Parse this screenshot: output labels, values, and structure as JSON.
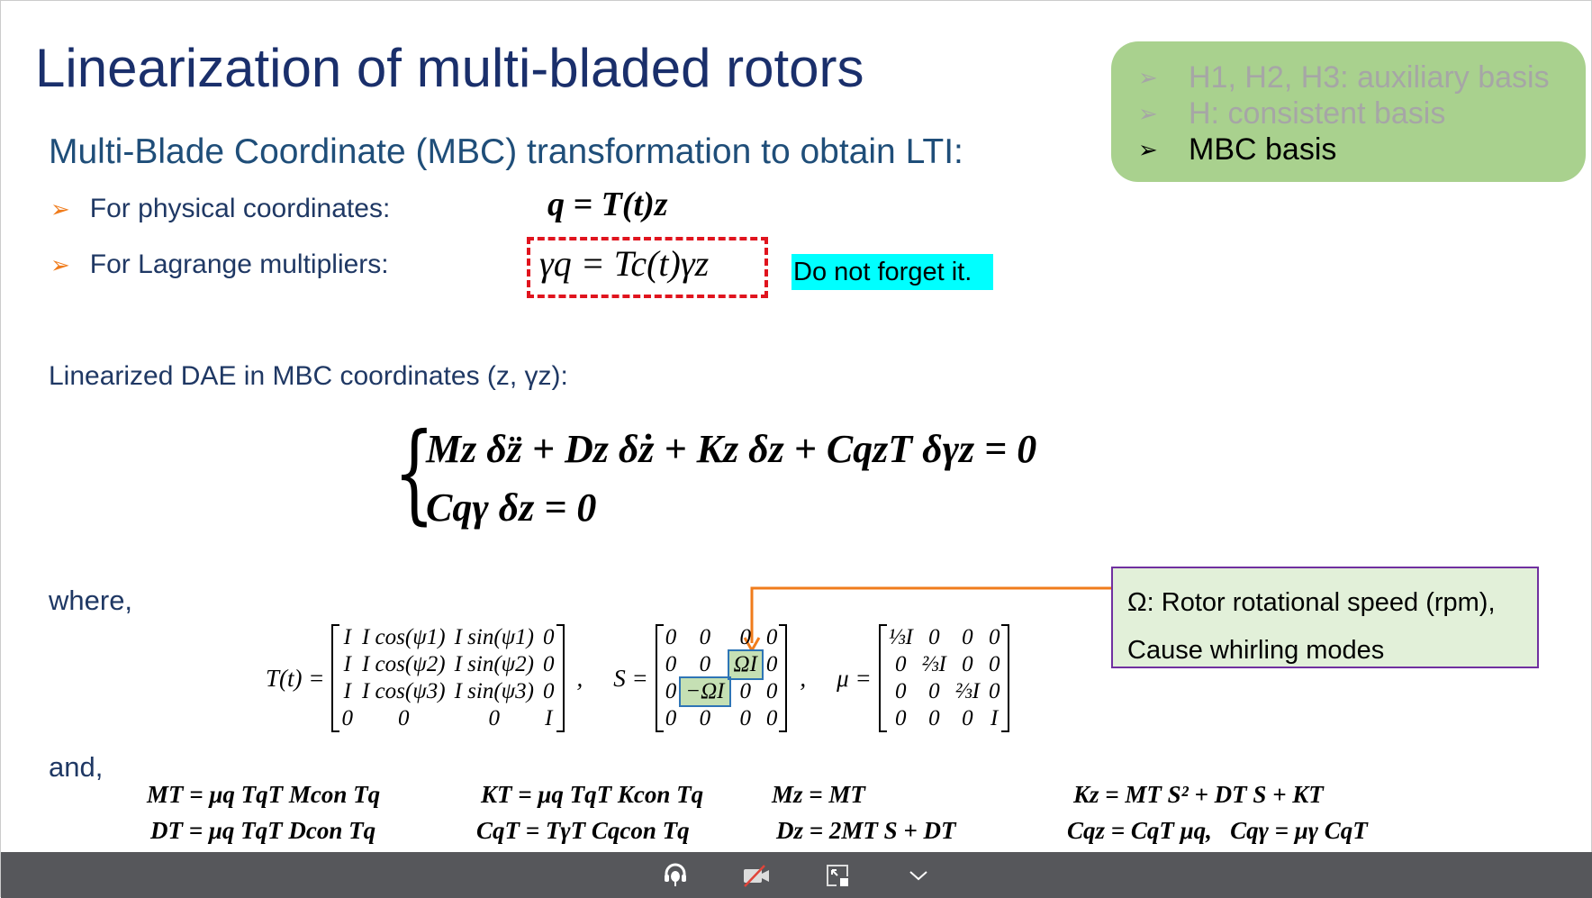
{
  "title": "Linearization of multi-bladed rotors",
  "subtitle": "Multi-Blade Coordinate (MBC) transformation to obtain LTI:",
  "bullets": [
    {
      "label": "For physical coordinates:",
      "equation": "q = T(t)z"
    },
    {
      "label": "For Lagrange multipliers:",
      "equation": "γq = Tc(t)γz"
    }
  ],
  "callout": "Do not forget it.",
  "basis_box": {
    "items": [
      {
        "text": "H1, H2, H3: auxiliary basis",
        "active": false
      },
      {
        "text": "H: consistent basis",
        "active": false
      },
      {
        "text": "MBC basis",
        "active": true
      }
    ]
  },
  "dae_label": "Linearized DAE in MBC coordinates (z, γz):",
  "dae_eq1": "Mz δz̈ + Dz δż + Kz δz + CqzT δγz = 0",
  "dae_eq2": "Cqγ δz = 0",
  "where": "where,",
  "and": "and,",
  "omega_note": {
    "line1": "Ω: Rotor rotational speed (rpm),",
    "line2": "Cause whirling modes"
  },
  "matrices": {
    "T": {
      "label": "T(t) =",
      "rows": [
        [
          "I",
          "I cos(ψ1)",
          "I sin(ψ1)",
          "0"
        ],
        [
          "I",
          "I cos(ψ2)",
          "I sin(ψ2)",
          "0"
        ],
        [
          "I",
          "I cos(ψ3)",
          "I sin(ψ3)",
          "0"
        ],
        [
          "0",
          "0",
          "0",
          "I"
        ]
      ]
    },
    "S": {
      "label": "S =",
      "rows": [
        [
          "0",
          "0",
          "0",
          "0"
        ],
        [
          "0",
          "0",
          "ΩI",
          "0"
        ],
        [
          "0",
          "−ΩI",
          "0",
          "0"
        ],
        [
          "0",
          "0",
          "0",
          "0"
        ]
      ]
    },
    "mu": {
      "label": "μ =",
      "rows": [
        [
          "⅓I",
          "0",
          "0",
          "0"
        ],
        [
          "0",
          "⅔I",
          "0",
          "0"
        ],
        [
          "0",
          "0",
          "⅔I",
          "0"
        ],
        [
          "0",
          "0",
          "0",
          "I"
        ]
      ]
    }
  },
  "bottom_eqs": [
    "MT = μq TqT Mcon Tq",
    "DT = μq TqT Dcon Tq",
    "KT = μq TqT Kcon Tq",
    "CqT = TγT Cqcon Tq",
    "Mz = MT",
    "Dz = 2MT S + DT",
    "Kz = MT S² + DT S + KT",
    "Cqz = CqT μq,   Cqγ = μγ CqT"
  ],
  "colors": {
    "title": "#1a2f6b",
    "accent_arrow": "#f07c1c",
    "green_box": "#a9d18e",
    "callout_bg": "#00ffff",
    "dashed": "#e0141e",
    "purple": "#7030a0",
    "toolbar": "#56575b"
  },
  "toolbar": {
    "icons": [
      "headset-icon",
      "camera-off-icon",
      "exit-fullscreen-icon",
      "chevron-down-icon"
    ]
  }
}
